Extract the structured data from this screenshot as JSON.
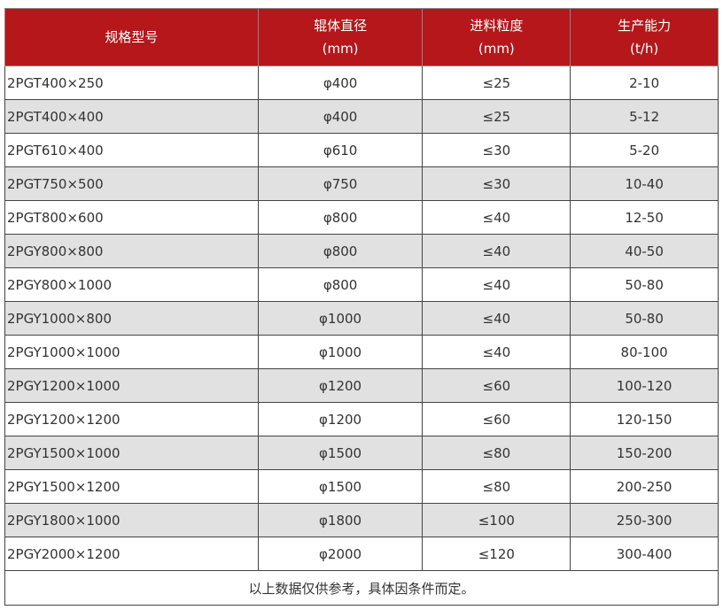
{
  "header_color": "#b5171b",
  "headers": [
    {
      "line1": "规格型号",
      "line2": ""
    },
    {
      "line1": "辊体直径",
      "line2": "(mm)"
    },
    {
      "line1": "进料粒度",
      "line2": "(mm)"
    },
    {
      "line1": "生产能力",
      "line2": "(t/h)"
    }
  ],
  "rows": [
    [
      "2PGT400×250",
      "φ400",
      "≤25",
      "2-10"
    ],
    [
      "2PGT400×400",
      "φ400",
      "≤25",
      "5-12"
    ],
    [
      "2PGT610×400",
      "φ610",
      "≤30",
      "5-20"
    ],
    [
      "2PGT750×500",
      "φ750",
      "≤30",
      "10-40"
    ],
    [
      "2PGT800×600",
      "φ800",
      "≤40",
      "12-50"
    ],
    [
      "2PGY800×800",
      "φ800",
      "≤40",
      "40-50"
    ],
    [
      "2PGY800×1000",
      "φ800",
      "≤40",
      "50-80"
    ],
    [
      "2PGY1000×800",
      "φ1000",
      "≤40",
      "50-80"
    ],
    [
      "2PGY1000×1000",
      "φ1000",
      "≤40",
      "80-100"
    ],
    [
      "2PGY1200×1000",
      "φ1200",
      "≤60",
      "100-120"
    ],
    [
      "2PGY1200×1200",
      "φ1200",
      "≤60",
      "120-150"
    ],
    [
      "2PGY1500×1000",
      "φ1500",
      "≤80",
      "150-200"
    ],
    [
      "2PGY1500×1200",
      "φ1500",
      "≤80",
      "200-250"
    ],
    [
      "2PGY1800×1000",
      "φ1800",
      "≤100",
      "250-300"
    ],
    [
      "2PGY2000×1200",
      "φ2000",
      "≤120",
      "300-400"
    ]
  ],
  "note": "以上数据仅供参考，具体因条件而定。"
}
